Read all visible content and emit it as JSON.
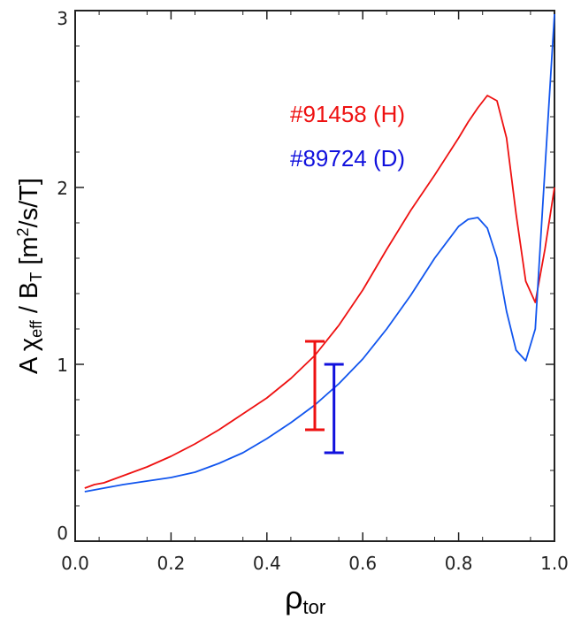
{
  "chart_data": {
    "type": "line",
    "xlabel": "ρ",
    "xlabel_sub": "tor",
    "ylabel_parts": {
      "a": "A χ",
      "a_sub": "eff",
      "b": " / B",
      "b_sub": "T",
      "c": " [m",
      "c_sup": "2",
      "d": "/s/T]"
    },
    "xlim": [
      0.0,
      1.0
    ],
    "ylim": [
      0,
      3
    ],
    "x_ticks": [
      "0.0",
      "0.2",
      "0.4",
      "0.6",
      "0.8",
      "1.0"
    ],
    "x_tick_values": [
      0.0,
      0.2,
      0.4,
      0.6,
      0.8,
      1.0
    ],
    "y_ticks": [
      "0",
      "1",
      "2",
      "3"
    ],
    "y_tick_values": [
      0,
      1,
      2,
      3
    ],
    "grid": false,
    "legend_position": "upper-middle",
    "series": [
      {
        "name": "#91458 (H)",
        "color": "#ee1111",
        "x": [
          0.02,
          0.04,
          0.06,
          0.1,
          0.15,
          0.2,
          0.25,
          0.3,
          0.35,
          0.4,
          0.45,
          0.5,
          0.55,
          0.6,
          0.65,
          0.7,
          0.75,
          0.8,
          0.82,
          0.84,
          0.86,
          0.88,
          0.9,
          0.92,
          0.94,
          0.96,
          0.98,
          1.0
        ],
        "y": [
          0.3,
          0.32,
          0.33,
          0.37,
          0.42,
          0.48,
          0.55,
          0.63,
          0.72,
          0.81,
          0.92,
          1.05,
          1.22,
          1.42,
          1.65,
          1.87,
          2.07,
          2.28,
          2.37,
          2.45,
          2.52,
          2.49,
          2.28,
          1.85,
          1.47,
          1.35,
          1.65,
          2.0
        ]
      },
      {
        "name": "#89724 (D)",
        "color": "#1155ee",
        "x": [
          0.02,
          0.04,
          0.06,
          0.1,
          0.15,
          0.2,
          0.25,
          0.3,
          0.35,
          0.4,
          0.45,
          0.5,
          0.55,
          0.6,
          0.65,
          0.7,
          0.75,
          0.8,
          0.82,
          0.84,
          0.86,
          0.88,
          0.9,
          0.92,
          0.94,
          0.96,
          0.97,
          0.98,
          1.0
        ],
        "y": [
          0.28,
          0.29,
          0.3,
          0.32,
          0.34,
          0.36,
          0.39,
          0.44,
          0.5,
          0.58,
          0.67,
          0.77,
          0.89,
          1.03,
          1.2,
          1.39,
          1.6,
          1.78,
          1.82,
          1.83,
          1.77,
          1.6,
          1.3,
          1.08,
          1.02,
          1.2,
          1.65,
          2.1,
          2.98
        ]
      }
    ],
    "error_bars": [
      {
        "series": "#91458 (H)",
        "color": "#ee1111",
        "x": 0.5,
        "low": 0.63,
        "high": 1.13
      },
      {
        "series": "#89724 (D)",
        "color": "#1111dd",
        "x": 0.54,
        "low": 0.5,
        "high": 1.0
      }
    ]
  }
}
